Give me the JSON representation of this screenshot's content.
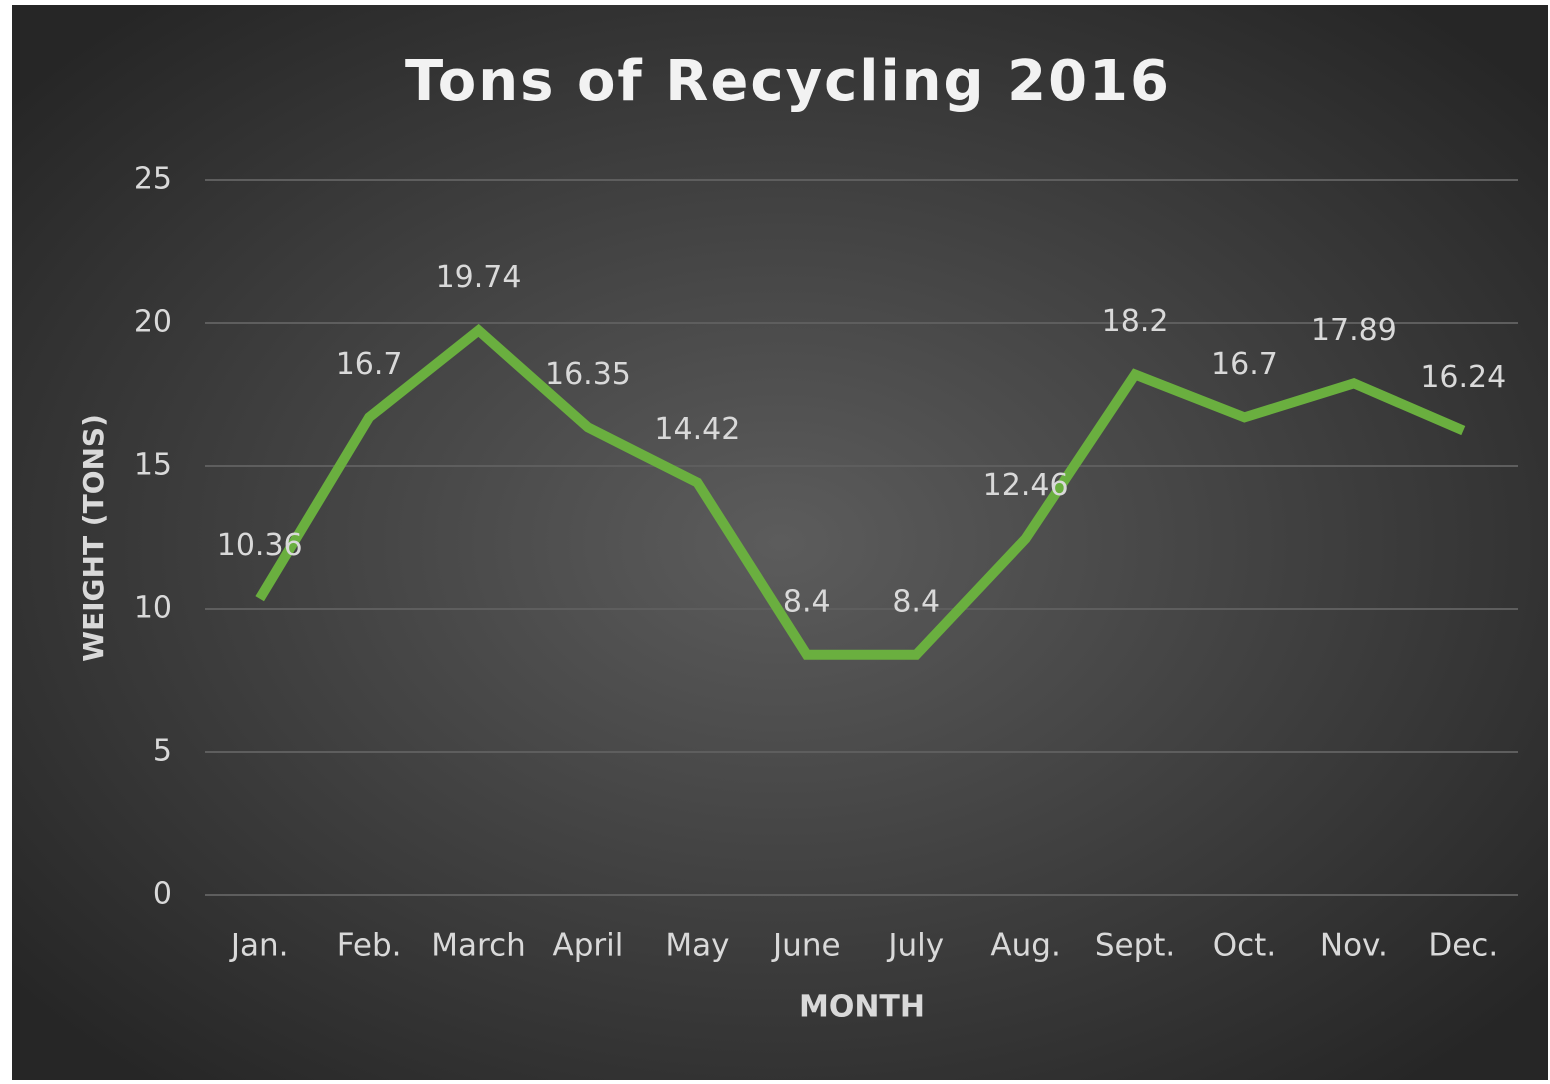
{
  "chart_data": {
    "type": "line",
    "title": "Tons of Recycling 2016",
    "x_label": "MONTH",
    "y_label": "WEIGHT (TONS)",
    "categories": [
      "Jan.",
      "Feb.",
      "March",
      "April",
      "May",
      "June",
      "July",
      "Aug.",
      "Sept.",
      "Oct.",
      "Nov.",
      "Dec."
    ],
    "values": [
      10.36,
      16.7,
      19.74,
      16.35,
      14.42,
      8.4,
      8.4,
      12.46,
      18.2,
      16.7,
      17.89,
      16.24
    ],
    "color": "#6aaf3f",
    "ylim": [
      0,
      25
    ],
    "yticks": [
      0,
      5,
      10,
      15,
      20,
      25
    ],
    "grid": true,
    "data_labels": true
  }
}
